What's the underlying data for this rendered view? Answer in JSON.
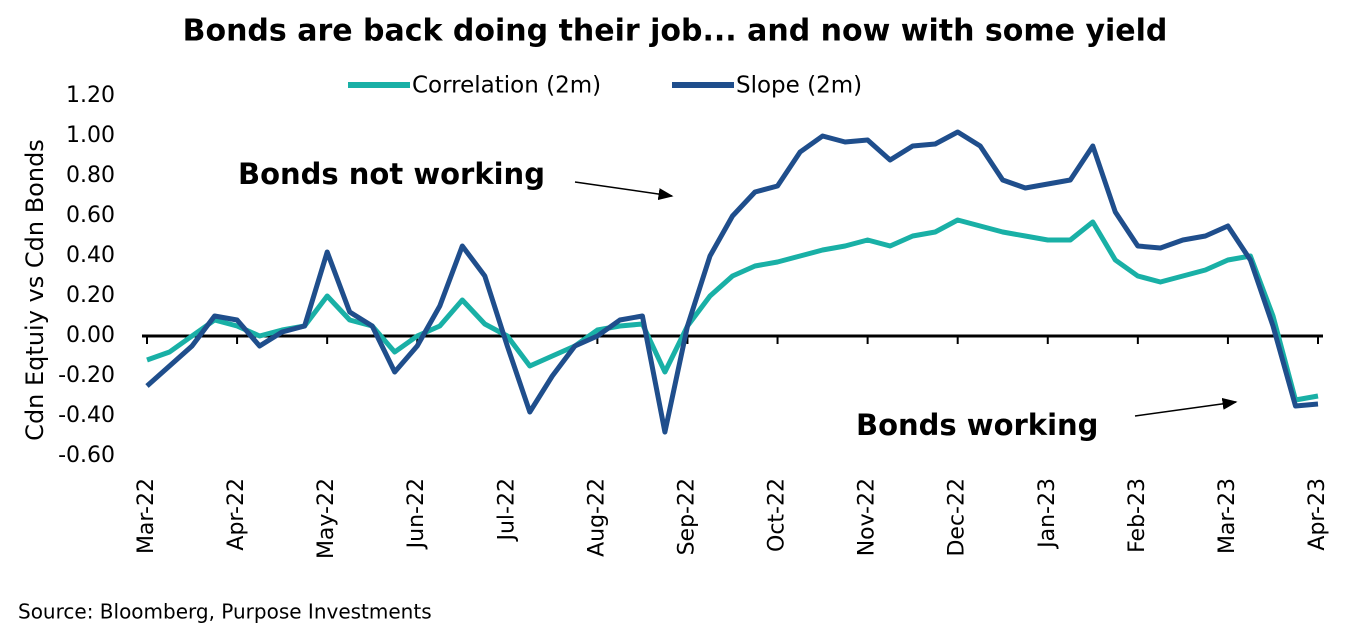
{
  "chart_data": {
    "type": "line",
    "title": "Bonds are back doing their job... and now with some yield",
    "y_label": "Cdn Eqtuiy vs Cdn Bonds",
    "source": "Source: Bloomberg, Purpose Investments",
    "annotations": [
      "Bonds not working",
      "Bonds working"
    ],
    "categories": [
      "Mar-22",
      null,
      null,
      null,
      "Apr-22",
      null,
      null,
      null,
      "May-22",
      null,
      null,
      null,
      "Jun-22",
      null,
      null,
      null,
      "Jul-22",
      null,
      null,
      null,
      "Aug-22",
      null,
      null,
      null,
      "Sep-22",
      null,
      null,
      null,
      "Oct-22",
      null,
      null,
      null,
      "Nov-22",
      null,
      null,
      null,
      "Dec-22",
      null,
      null,
      null,
      "Jan-23",
      null,
      null,
      null,
      "Feb-23",
      null,
      null,
      null,
      "Mar-23",
      null,
      null,
      null,
      "Apr-23"
    ],
    "series": [
      {
        "name": "Correlation (2m)",
        "color": "#19b0a6",
        "values": [
          -0.12,
          -0.08,
          0.0,
          0.08,
          0.05,
          0.0,
          0.03,
          0.05,
          0.2,
          0.08,
          0.05,
          -0.08,
          0.0,
          0.05,
          0.18,
          0.06,
          0.0,
          -0.15,
          -0.1,
          -0.05,
          0.03,
          0.05,
          0.06,
          -0.18,
          0.05,
          0.2,
          0.3,
          0.35,
          0.37,
          0.4,
          0.43,
          0.45,
          0.48,
          0.45,
          0.5,
          0.52,
          0.58,
          0.55,
          0.52,
          0.5,
          0.48,
          0.48,
          0.57,
          0.38,
          0.3,
          0.27,
          0.3,
          0.33,
          0.38,
          0.4,
          0.1,
          -0.32,
          -0.3
        ]
      },
      {
        "name": "Slope (2m)",
        "color": "#1f4e8c",
        "values": [
          -0.25,
          -0.15,
          -0.05,
          0.1,
          0.08,
          -0.05,
          0.02,
          0.05,
          0.42,
          0.12,
          0.05,
          -0.18,
          -0.05,
          0.15,
          0.45,
          0.3,
          -0.05,
          -0.38,
          -0.2,
          -0.05,
          0.0,
          0.08,
          0.1,
          -0.48,
          0.05,
          0.4,
          0.6,
          0.72,
          0.75,
          0.92,
          1.0,
          0.97,
          0.98,
          0.88,
          0.95,
          0.96,
          1.02,
          0.95,
          0.78,
          0.74,
          0.76,
          0.78,
          0.95,
          0.62,
          0.45,
          0.44,
          0.48,
          0.5,
          0.55,
          0.38,
          0.05,
          -0.35,
          -0.34
        ]
      }
    ],
    "ylim": [
      -0.6,
      1.2
    ],
    "yticks": [
      {
        "value": -0.6,
        "label": "-0.60"
      },
      {
        "value": -0.4,
        "label": "-0.40"
      },
      {
        "value": -0.2,
        "label": "-0.20"
      },
      {
        "value": 0,
        "label": "0.00"
      },
      {
        "value": 0.2,
        "label": "0.20"
      },
      {
        "value": 0.4,
        "label": "0.40"
      },
      {
        "value": 0.6,
        "label": "0.60"
      },
      {
        "value": 0.8,
        "label": "0.80"
      },
      {
        "value": 1,
        "label": "1.00"
      },
      {
        "value": 1.2,
        "label": "1.20"
      }
    ],
    "grid": false
  }
}
